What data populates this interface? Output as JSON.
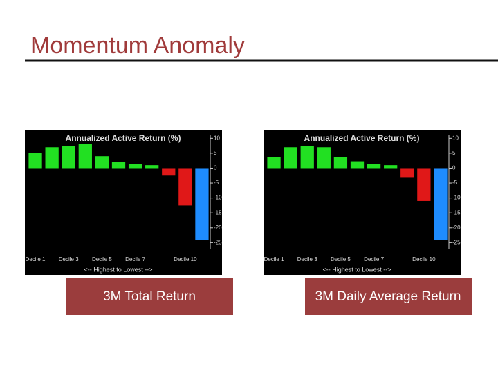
{
  "title": "Momentum Anomaly",
  "captions": [
    "3M Total Return",
    "3M Daily Average Return"
  ],
  "chart_data": [
    {
      "type": "bar",
      "title": "Annualized Active Return (%)",
      "x_label": "<-- Highest to Lowest -->",
      "categories": [
        "Decile 1",
        null,
        "Decile 3",
        null,
        "Decile 5",
        null,
        "Decile 7",
        null,
        null,
        "Decile 10",
        null
      ],
      "values": [
        5,
        7,
        7.5,
        8,
        4,
        2,
        1.5,
        1,
        -2.5,
        -12.5,
        -24
      ],
      "colors": [
        "#22e022",
        "#22e022",
        "#22e022",
        "#22e022",
        "#22e022",
        "#22e022",
        "#22e022",
        "#22e022",
        "#e01818",
        "#e01818",
        "#1e8cff"
      ],
      "ylim": [
        -27,
        11
      ],
      "yticks": [
        10,
        5,
        0,
        -5,
        -10,
        -15,
        -20,
        -25
      ]
    },
    {
      "type": "bar",
      "title": "Annualized Active Return (%)",
      "x_label": "<-- Highest to Lowest -->",
      "categories": [
        "Decile 1",
        null,
        "Decile 3",
        null,
        "Decile 5",
        null,
        "Decile 7",
        null,
        null,
        "Decile 10",
        null
      ],
      "values": [
        3.7,
        7,
        7.5,
        7,
        3.7,
        2.3,
        1.4,
        1,
        -3,
        -11,
        -24
      ],
      "colors": [
        "#22e022",
        "#22e022",
        "#22e022",
        "#22e022",
        "#22e022",
        "#22e022",
        "#22e022",
        "#22e022",
        "#e01818",
        "#e01818",
        "#1e8cff"
      ],
      "ylim": [
        -27,
        11
      ],
      "yticks": [
        10,
        5,
        0,
        -5,
        -10,
        -15,
        -20,
        -25
      ]
    }
  ]
}
